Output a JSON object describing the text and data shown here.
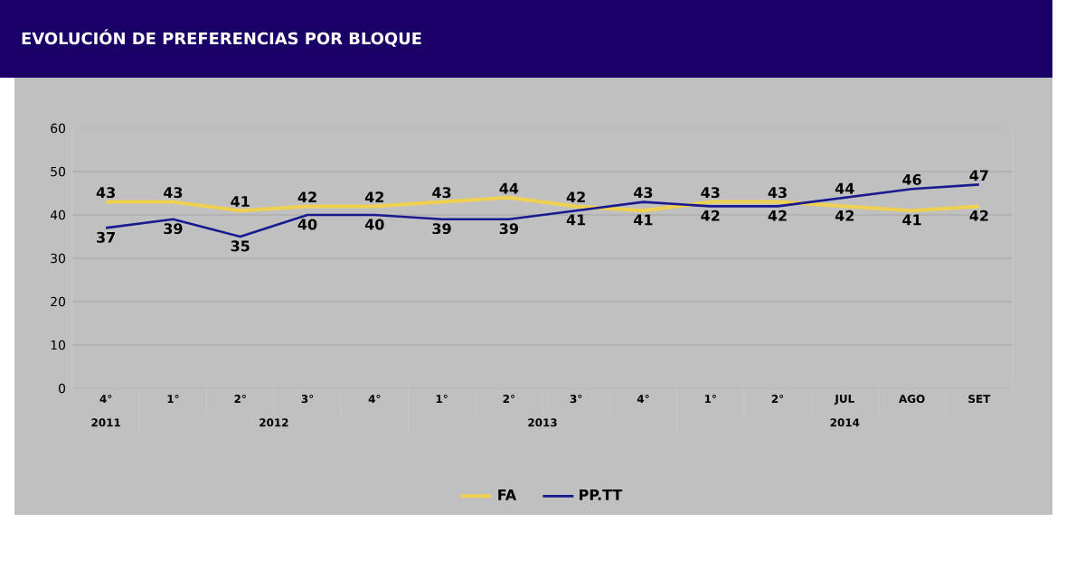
{
  "chart_data": {
    "type": "line",
    "title": "EVOLUCIÓN DE PREFERENCIAS POR BLOQUE",
    "categories": [
      "4°",
      "1°",
      "2°",
      "3°",
      "4°",
      "1°",
      "2°",
      "3°",
      "4°",
      "1°",
      "2°",
      "JUL",
      "AGO",
      "SET"
    ],
    "annotations": [
      "2011",
      "2012",
      "2013",
      "2014"
    ],
    "series": [
      {
        "name": "FA",
        "color": "#f0d050",
        "values": [
          43,
          43,
          41,
          42,
          42,
          43,
          44,
          42,
          41,
          43,
          43,
          42,
          41,
          42
        ]
      },
      {
        "name": "PP.TT",
        "color": "#1a1a90",
        "values": [
          37,
          39,
          35,
          40,
          40,
          39,
          39,
          41,
          43,
          42,
          42,
          44,
          46,
          47
        ]
      }
    ],
    "ylim": [
      0,
      60
    ],
    "yticks": [
      0,
      10,
      20,
      30,
      40,
      50,
      60
    ],
    "grid": "y",
    "legend": "bottom",
    "data_labels": true,
    "marker": "none",
    "line_style": "solid"
  }
}
